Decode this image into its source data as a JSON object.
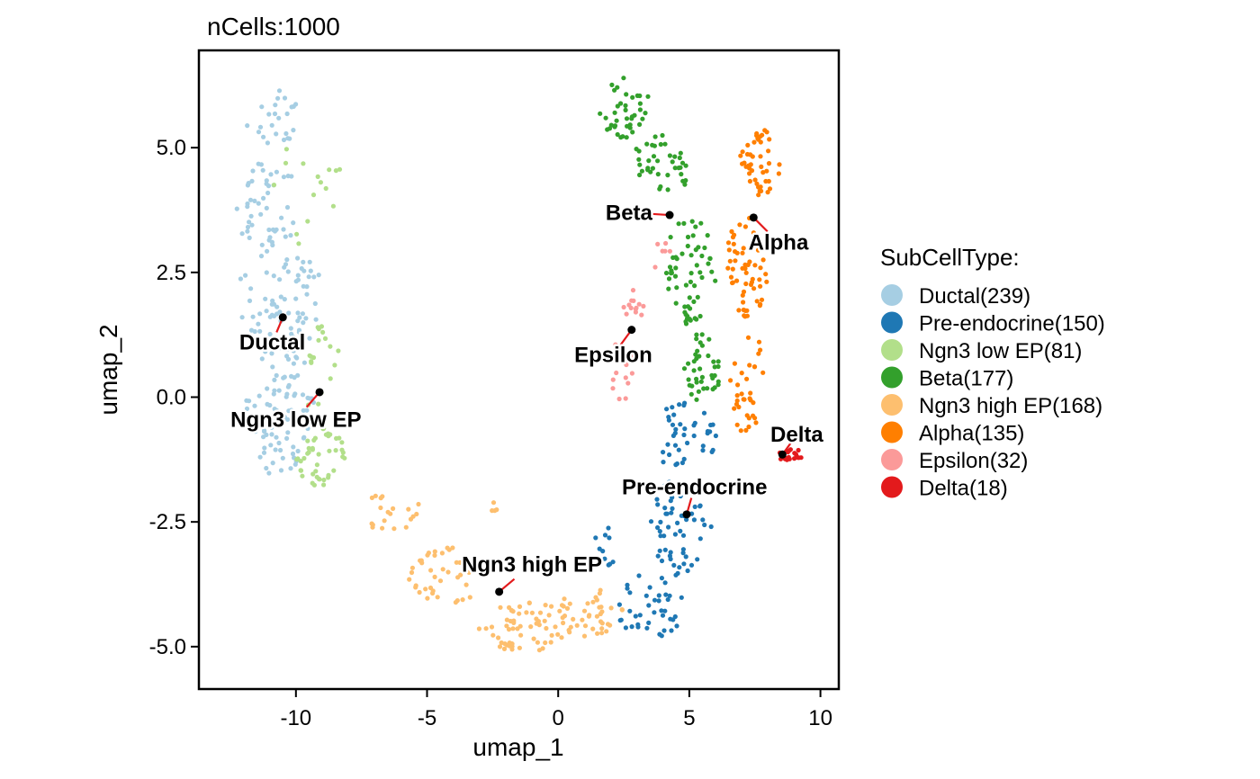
{
  "chart_data": {
    "type": "scatter",
    "title": "nCells:1000",
    "xlabel": "umap_1",
    "ylabel": "umap_2",
    "xlim": [
      -13.7,
      10.7
    ],
    "ylim": [
      -5.85,
      6.95
    ],
    "x_ticks": [
      -10,
      -5,
      0,
      5,
      10
    ],
    "x_tick_labels": [
      "-10",
      "-5",
      "0",
      "5",
      "10"
    ],
    "y_ticks": [
      5.0,
      2.5,
      0.0,
      -2.5,
      -5.0
    ],
    "y_tick_labels": [
      "5.0",
      "2.5",
      "0.0",
      "-2.5",
      "-5.0"
    ],
    "grid": false,
    "legend_title": "SubCellType:",
    "legend_position": "right",
    "series": [
      {
        "name": "Ductal(239)",
        "label": "Ductal",
        "color": "#A6CEE3",
        "count": 239,
        "centroid": [
          -10.5,
          1.6
        ],
        "label_pos": [
          -10.9,
          1.1
        ],
        "regions": [
          {
            "cx": -10.9,
            "cy": 5.6,
            "rx": 1.0,
            "ry": 0.6,
            "w": 1
          },
          {
            "cx": -11.1,
            "cy": 3.8,
            "rx": 1.2,
            "ry": 1.0,
            "w": 2
          },
          {
            "cx": -10.6,
            "cy": 2.0,
            "rx": 1.6,
            "ry": 1.2,
            "w": 3
          },
          {
            "cx": -10.6,
            "cy": 0.0,
            "rx": 1.3,
            "ry": 1.2,
            "w": 3
          },
          {
            "cx": -10.6,
            "cy": -1.0,
            "rx": 1.0,
            "ry": 0.6,
            "w": 1
          }
        ]
      },
      {
        "name": "Pre-endocrine(150)",
        "label": "Pre-endocrine",
        "color": "#1F78B4",
        "count": 150,
        "centroid": [
          4.9,
          -2.35
        ],
        "label_pos": [
          5.2,
          -1.8
        ],
        "regions": [
          {
            "cx": 4.9,
            "cy": -0.8,
            "rx": 1.3,
            "ry": 0.7,
            "w": 2
          },
          {
            "cx": 4.7,
            "cy": -2.6,
            "rx": 1.3,
            "ry": 1.0,
            "w": 3
          },
          {
            "cx": 3.5,
            "cy": -4.2,
            "rx": 1.3,
            "ry": 0.7,
            "w": 2
          },
          {
            "cx": 1.8,
            "cy": -3.0,
            "rx": 0.5,
            "ry": 0.4,
            "w": 0.5
          }
        ]
      },
      {
        "name": "Ngn3 low EP(81)",
        "label": "Ngn3 low EP",
        "color": "#B2DF8A",
        "count": 81,
        "centroid": [
          -9.1,
          0.1
        ],
        "label_pos": [
          -10.0,
          -0.45
        ],
        "regions": [
          {
            "cx": -9.1,
            "cy": -1.2,
            "rx": 1.0,
            "ry": 0.6,
            "w": 3
          },
          {
            "cx": -9.0,
            "cy": 0.5,
            "rx": 0.7,
            "ry": 1.0,
            "w": 1.5
          },
          {
            "cx": -9.5,
            "cy": 4.0,
            "rx": 1.8,
            "ry": 1.2,
            "w": 1
          }
        ]
      },
      {
        "name": "Beta(177)",
        "label": "Beta",
        "color": "#33A02C",
        "count": 177,
        "centroid": [
          4.25,
          3.65
        ],
        "label_pos": [
          2.7,
          3.7
        ],
        "regions": [
          {
            "cx": 2.5,
            "cy": 5.8,
            "rx": 1.0,
            "ry": 0.6,
            "w": 2
          },
          {
            "cx": 3.9,
            "cy": 4.6,
            "rx": 1.1,
            "ry": 0.7,
            "w": 2
          },
          {
            "cx": 5.0,
            "cy": 2.5,
            "rx": 1.0,
            "ry": 1.1,
            "w": 3
          },
          {
            "cx": 5.5,
            "cy": 0.6,
            "rx": 0.7,
            "ry": 0.7,
            "w": 2
          }
        ]
      },
      {
        "name": "Ngn3 high EP(168)",
        "label": "Ngn3 high EP",
        "color": "#FDBF6F",
        "count": 168,
        "centroid": [
          -2.25,
          -3.9
        ],
        "label_pos": [
          -1.0,
          -3.35
        ],
        "regions": [
          {
            "cx": -6.4,
            "cy": -2.3,
            "rx": 1.2,
            "ry": 0.4,
            "w": 1
          },
          {
            "cx": -4.3,
            "cy": -3.6,
            "rx": 1.4,
            "ry": 0.6,
            "w": 2
          },
          {
            "cx": -1.3,
            "cy": -4.6,
            "rx": 1.8,
            "ry": 0.5,
            "w": 3
          },
          {
            "cx": 1.2,
            "cy": -4.3,
            "rx": 1.3,
            "ry": 0.5,
            "w": 2
          },
          {
            "cx": -2.5,
            "cy": -2.4,
            "rx": 0.3,
            "ry": 0.4,
            "w": 0.2
          }
        ]
      },
      {
        "name": "Alpha(135)",
        "label": "Alpha",
        "color": "#FF7F00",
        "count": 135,
        "centroid": [
          7.45,
          3.6
        ],
        "label_pos": [
          8.4,
          3.1
        ],
        "regions": [
          {
            "cx": 7.7,
            "cy": 4.7,
            "rx": 0.8,
            "ry": 0.7,
            "w": 2
          },
          {
            "cx": 7.2,
            "cy": 2.6,
            "rx": 0.9,
            "ry": 1.0,
            "w": 2.5
          },
          {
            "cx": 7.2,
            "cy": 0.4,
            "rx": 0.7,
            "ry": 1.2,
            "w": 1.5
          }
        ]
      },
      {
        "name": "Epsilon(32)",
        "label": "Epsilon",
        "color": "#FB9A99",
        "count": 32,
        "centroid": [
          2.8,
          1.35
        ],
        "label_pos": [
          2.1,
          0.85
        ],
        "regions": [
          {
            "cx": 3.0,
            "cy": 1.9,
            "rx": 0.7,
            "ry": 0.3,
            "w": 1
          },
          {
            "cx": 2.4,
            "cy": 0.5,
            "rx": 0.5,
            "ry": 0.7,
            "w": 1
          },
          {
            "cx": 3.8,
            "cy": 2.9,
            "rx": 0.5,
            "ry": 0.4,
            "w": 0.5
          }
        ]
      },
      {
        "name": "Delta(18)",
        "label": "Delta",
        "color": "#E31A1C",
        "count": 18,
        "centroid": [
          8.55,
          -1.15
        ],
        "label_pos": [
          9.1,
          -0.75
        ],
        "regions": [
          {
            "cx": 8.9,
            "cy": -1.15,
            "rx": 0.7,
            "ry": 0.12,
            "w": 1
          }
        ]
      }
    ]
  }
}
